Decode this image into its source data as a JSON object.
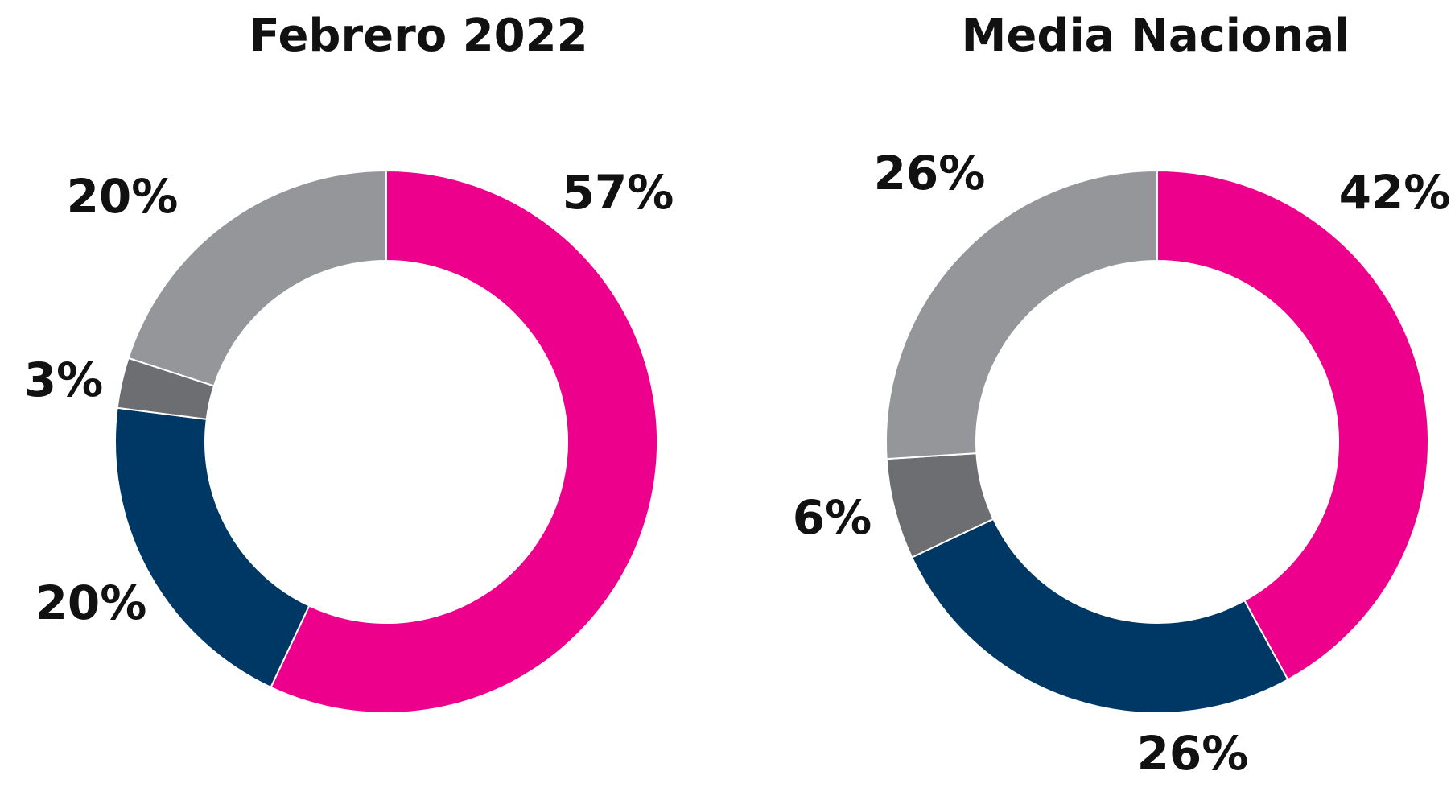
{
  "chart_data": [
    {
      "type": "pie",
      "title": "Febrero 2022",
      "values": [
        57,
        20,
        3,
        20
      ],
      "value_labels": [
        "57%",
        "20%",
        "3%",
        "20%"
      ],
      "colors": [
        "#ec008c",
        "#003865",
        "#6d6e71",
        "#959699"
      ],
      "donut": true
    },
    {
      "type": "pie",
      "title": "Media Nacional",
      "values": [
        42,
        26,
        6,
        26
      ],
      "value_labels": [
        "42%",
        "26%",
        "6%",
        "26%"
      ],
      "colors": [
        "#ec008c",
        "#003865",
        "#6d6e71",
        "#959699"
      ],
      "donut": true
    }
  ]
}
